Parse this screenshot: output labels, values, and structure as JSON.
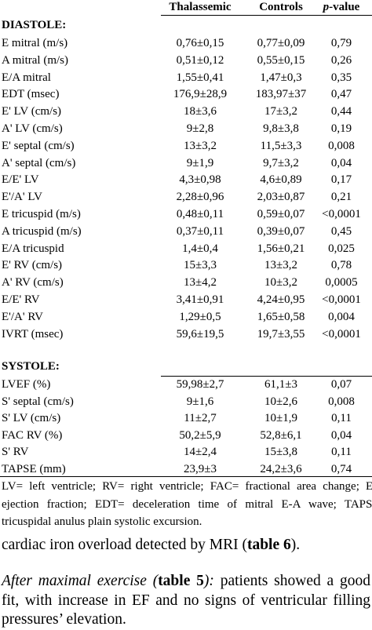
{
  "table": {
    "headers": [
      "",
      "Thalassemic",
      "Controls",
      [
        "p",
        "-value"
      ]
    ],
    "sections": [
      {
        "title": "DIASTOLE:",
        "rows": [
          [
            "E mitral (m/s)",
            "0,76±0,15",
            "0,77±0,09",
            "0,79"
          ],
          [
            "A mitral (m/s)",
            "0,51±0,12",
            "0,55±0,15",
            "0,26"
          ],
          [
            "E/A mitral",
            "1,55±0,41",
            "1,47±0,3",
            "0,35"
          ],
          [
            "EDT (msec)",
            "176,9±28,9",
            "183,97±37",
            "0,47"
          ],
          [
            "E' LV (cm/s)",
            "18±3,6",
            "17±3,2",
            "0,44"
          ],
          [
            "A' LV (cm/s)",
            "9±2,8",
            "9,8±3,8",
            "0,19"
          ],
          [
            "E' septal (cm/s)",
            "13±3,2",
            "11,5±3,3",
            "0,008"
          ],
          [
            "A' septal (cm/s)",
            "9±1,9",
            "9,7±3,2",
            "0,04"
          ],
          [
            "E/E' LV",
            "4,3±0,98",
            "4,6±0,89",
            "0,17"
          ],
          [
            "E'/A' LV",
            "2,28±0,96",
            "2,03±0,87",
            "0,21"
          ],
          [
            "E tricuspid (m/s)",
            "0,48±0,11",
            "0,59±0,07",
            "<0,0001"
          ],
          [
            "A tricuspid (m/s)",
            "0,37±0,11",
            "0,39±0,07",
            "0,45"
          ],
          [
            "E/A tricuspid",
            "1,4±0,4",
            "1,56±0,21",
            "0,025"
          ],
          [
            "E' RV (cm/s)",
            "15±3,3",
            "13±3,2",
            "0,78"
          ],
          [
            "A' RV (cm/s)",
            "13±4,2",
            "10±3,2",
            "0,0005"
          ],
          [
            "E/E' RV",
            "3,41±0,91",
            "4,24±0,95",
            "<0,0001"
          ],
          [
            "E'/A' RV",
            "1,29±0,5",
            "1,65±0,58",
            "0,004"
          ],
          [
            "IVRT (msec)",
            "59,6±19,5",
            "19,7±3,55",
            "<0,0001"
          ]
        ]
      },
      {
        "title": "SYSTOLE:",
        "rows": [
          [
            "LVEF (%)",
            "59,98±2,7",
            "61,1±3",
            "0,07"
          ],
          [
            "S' septal (cm/s)",
            "9±1,6",
            "10±2,6",
            "0,008"
          ],
          [
            "S' LV (cm/s)",
            "11±2,7",
            "10±1,9",
            "0,11"
          ],
          [
            "FAC RV (%)",
            "50,2±5,9",
            "52,8±6,1",
            "0,04"
          ],
          [
            "S' RV",
            "14±2,4",
            "15±3,8",
            "0,11"
          ],
          [
            "TAPSE (mm)",
            "23,9±3",
            "24,2±3,6",
            "0,74"
          ]
        ]
      }
    ],
    "footnote": "LV= left ventricle; RV= right ventricle; FAC= fractional area change; EF= ejection fraction; EDT= deceleration time of mitral E-A wave; TAPSE= tricuspidal anulus plain systolic excursion."
  },
  "paragraphs": [
    [
      "cardiac iron overload detected by MRI (",
      "table 6",
      ")."
    ],
    [
      "After maximal exercise (",
      "table 5",
      "):",
      " patients showed a good fit, with increase in EF and no signs of ventricular filling pressures’ elevation."
    ]
  ]
}
